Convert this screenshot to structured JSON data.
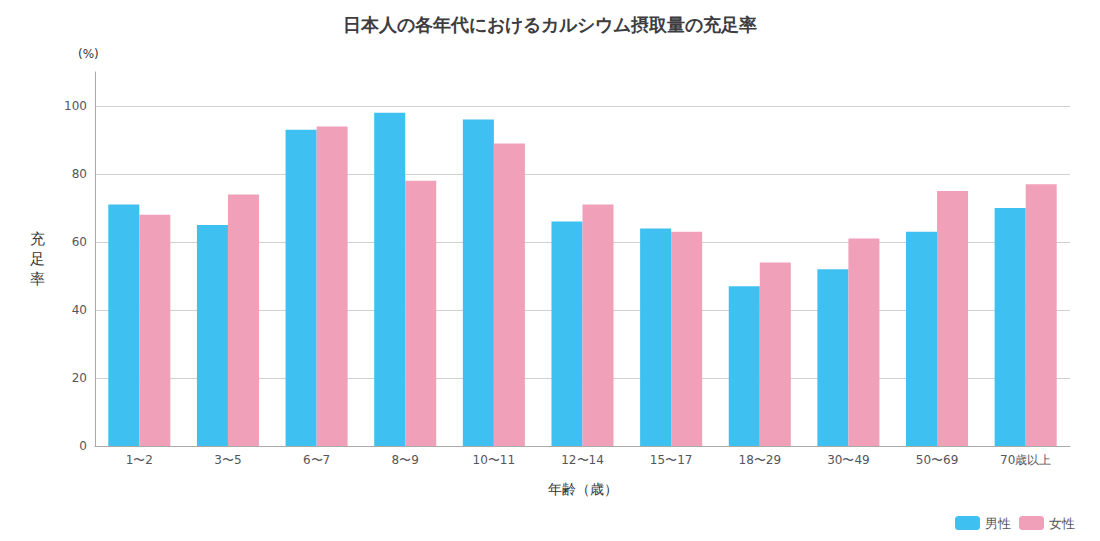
{
  "chart_data": {
    "type": "bar",
    "title": "日本人の各年代におけるカルシウム摂取量の充足率",
    "categories": [
      "1〜2",
      "3〜5",
      "6〜7",
      "8〜9",
      "10〜11",
      "12〜14",
      "15〜17",
      "18〜29",
      "30〜49",
      "50〜69",
      "70歳以上"
    ],
    "series": [
      {
        "name": "男性",
        "color": "#3ec0f0",
        "values": [
          71,
          65,
          93,
          98,
          96,
          66,
          64,
          47,
          52,
          63,
          70
        ]
      },
      {
        "name": "女性",
        "color": "#f0a0b8",
        "values": [
          68,
          74,
          94,
          78,
          89,
          71,
          63,
          54,
          61,
          75,
          77
        ]
      }
    ],
    "xlabel": "年齢（歳）",
    "ylabel": "充\n足\n率",
    "annotations": [
      "(%)"
    ],
    "ylim": [
      0,
      110
    ],
    "yticks": [
      0,
      20,
      40,
      60,
      80,
      100
    ],
    "grid": true,
    "legend": "lower right"
  }
}
